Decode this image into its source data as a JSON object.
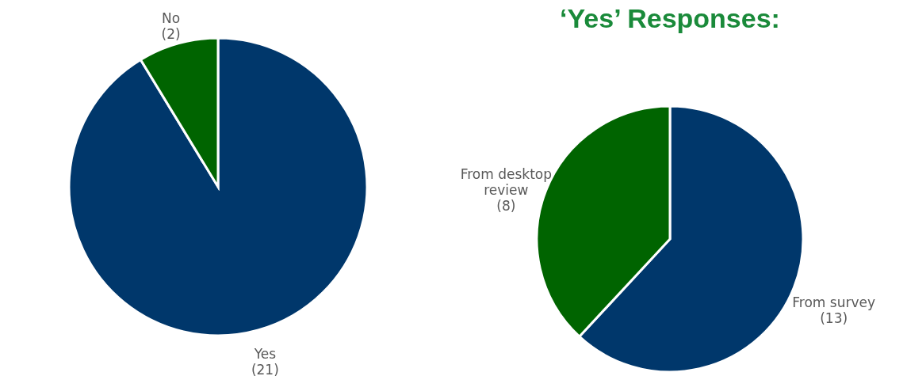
{
  "chart_data": [
    {
      "type": "pie",
      "categories": [
        "Yes",
        "No"
      ],
      "values": [
        21,
        2
      ],
      "colors": [
        "#00376b",
        "#006400"
      ],
      "value_labels": [
        "(21)",
        "(2)"
      ]
    },
    {
      "type": "pie",
      "title": "‘Yes’ Responses:",
      "categories": [
        "From survey",
        "From desktop review"
      ],
      "values": [
        13,
        8
      ],
      "colors": [
        "#00376b",
        "#006400"
      ],
      "value_labels": [
        "(13)",
        "(8)"
      ]
    }
  ]
}
